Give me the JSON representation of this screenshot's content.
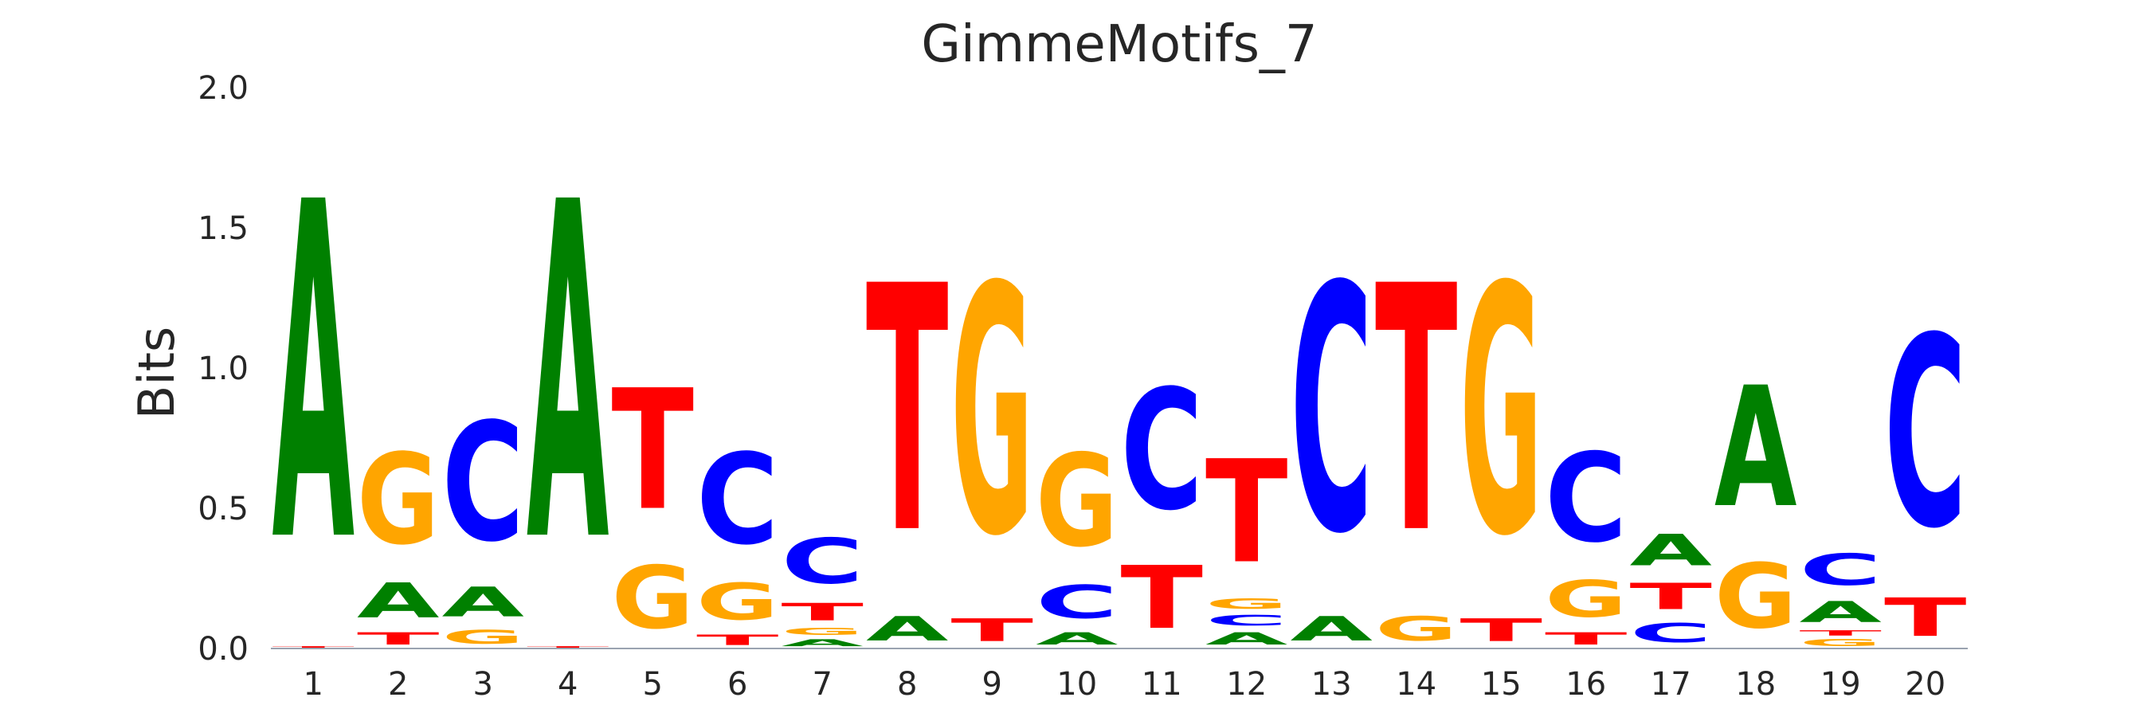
{
  "chart_data": {
    "type": "sequence-logo",
    "title": "GimmeMotifs_7",
    "ylabel": "Bits",
    "xlabel": "",
    "ylim": [
      0,
      2.0
    ],
    "yticks": [
      "0.0",
      "0.5",
      "1.0",
      "1.5",
      "2.0"
    ],
    "categories": [
      "1",
      "2",
      "3",
      "4",
      "5",
      "6",
      "7",
      "8",
      "9",
      "10",
      "11",
      "12",
      "13",
      "14",
      "15",
      "16",
      "17",
      "18",
      "19",
      "20"
    ],
    "colors": {
      "A": "#008000",
      "C": "#0000ff",
      "G": "#ffa500",
      "T": "#ff0000"
    },
    "positions": [
      {
        "pos": "1",
        "letters": [
          [
            "T",
            0.01
          ],
          [
            "A",
            1.93
          ]
        ]
      },
      {
        "pos": "2",
        "letters": [
          [
            "T",
            0.07
          ],
          [
            "A",
            0.2
          ],
          [
            "G",
            0.52
          ]
        ]
      },
      {
        "pos": "3",
        "letters": [
          [
            "G",
            0.08
          ],
          [
            "A",
            0.17
          ],
          [
            "C",
            0.68
          ]
        ]
      },
      {
        "pos": "4",
        "letters": [
          [
            "T",
            0.01
          ],
          [
            "A",
            1.93
          ]
        ]
      },
      {
        "pos": "5",
        "letters": [
          [
            "G",
            0.36
          ],
          [
            "T",
            0.69
          ]
        ]
      },
      {
        "pos": "6",
        "letters": [
          [
            "T",
            0.06
          ],
          [
            "G",
            0.21
          ],
          [
            "C",
            0.52
          ]
        ]
      },
      {
        "pos": "7",
        "letters": [
          [
            "A",
            0.04
          ],
          [
            "G",
            0.04
          ],
          [
            "T",
            0.1
          ],
          [
            "C",
            0.26
          ]
        ]
      },
      {
        "pos": "8",
        "letters": [
          [
            "A",
            0.14
          ],
          [
            "T",
            1.41
          ]
        ]
      },
      {
        "pos": "9",
        "letters": [
          [
            "T",
            0.13
          ],
          [
            "G",
            1.42
          ]
        ]
      },
      {
        "pos": "10",
        "letters": [
          [
            "A",
            0.07
          ],
          [
            "C",
            0.19
          ],
          [
            "G",
            0.53
          ]
        ]
      },
      {
        "pos": "11",
        "letters": [
          [
            "T",
            0.36
          ],
          [
            "C",
            0.69
          ]
        ]
      },
      {
        "pos": "12",
        "letters": [
          [
            "A",
            0.07
          ],
          [
            "C",
            0.06
          ],
          [
            "G",
            0.06
          ],
          [
            "T",
            0.59
          ]
        ]
      },
      {
        "pos": "13",
        "letters": [
          [
            "A",
            0.14
          ],
          [
            "C",
            1.41
          ]
        ]
      },
      {
        "pos": "14",
        "letters": [
          [
            "G",
            0.14
          ],
          [
            "T",
            1.41
          ]
        ]
      },
      {
        "pos": "15",
        "letters": [
          [
            "T",
            0.13
          ],
          [
            "G",
            1.42
          ]
        ]
      },
      {
        "pos": "16",
        "letters": [
          [
            "T",
            0.07
          ],
          [
            "G",
            0.21
          ],
          [
            "C",
            0.51
          ]
        ]
      },
      {
        "pos": "17",
        "letters": [
          [
            "C",
            0.11
          ],
          [
            "T",
            0.15
          ],
          [
            "A",
            0.18
          ]
        ]
      },
      {
        "pos": "18",
        "letters": [
          [
            "G",
            0.37
          ],
          [
            "A",
            0.69
          ]
        ]
      },
      {
        "pos": "19",
        "letters": [
          [
            "G",
            0.04
          ],
          [
            "T",
            0.03
          ],
          [
            "A",
            0.12
          ],
          [
            "C",
            0.18
          ]
        ]
      },
      {
        "pos": "20",
        "letters": [
          [
            "T",
            0.22
          ],
          [
            "C",
            1.09
          ]
        ]
      }
    ]
  }
}
